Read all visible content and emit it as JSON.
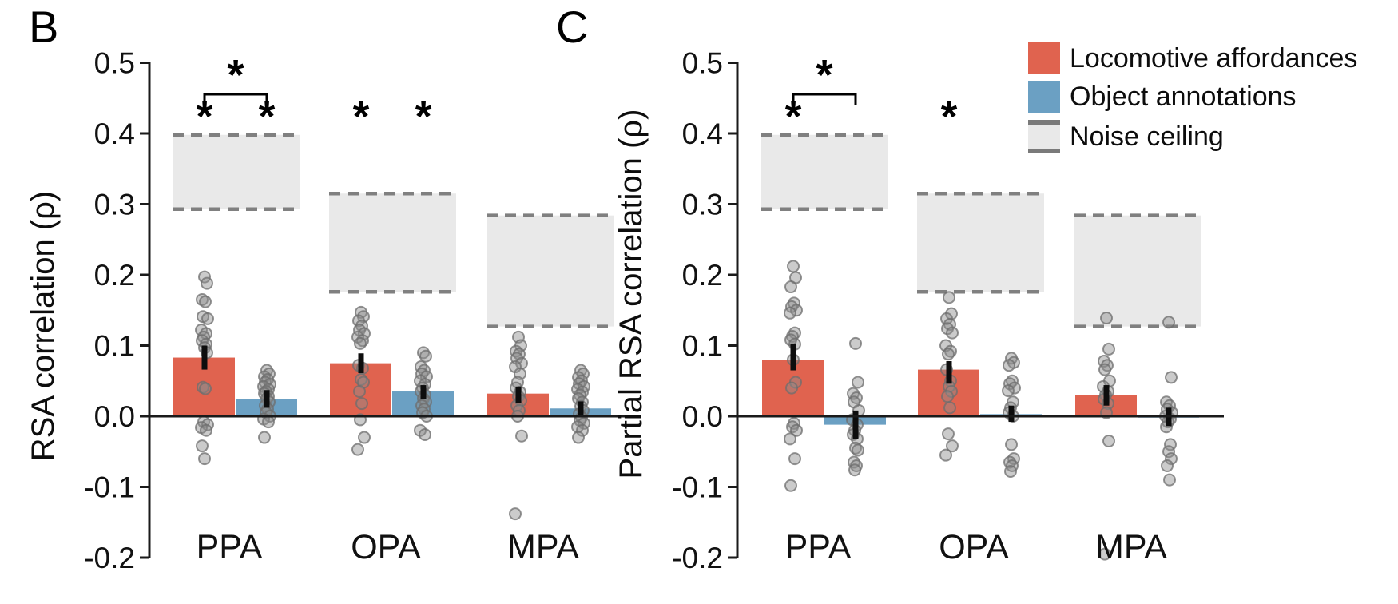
{
  "figure": {
    "colors": {
      "locomotive": "#E0634F",
      "object": "#6BA0C3",
      "noise_fill": "#E9E9E9",
      "noise_edge": "#808080",
      "axis": "#1A1A1A",
      "error_bar": "#0D0D0D",
      "point_fill": "#8C8C8C",
      "point_edge": "#6E6E6E",
      "text": "#111111"
    },
    "legend": {
      "items": [
        {
          "label": "Locomotive affordances",
          "swatch": "locomotive"
        },
        {
          "label": "Object annotations",
          "swatch": "object"
        },
        {
          "label": "Noise ceiling",
          "swatch": "noise"
        }
      ]
    }
  },
  "chart_data": [
    {
      "type": "bar",
      "panel_letter": "B",
      "ylabel": "RSA correlation (ρ)",
      "categories": [
        "PPA",
        "OPA",
        "MPA"
      ],
      "ylim": [
        -0.2,
        0.5
      ],
      "y_ticks": [
        0.5,
        0.4,
        0.3,
        0.2,
        0.1,
        0.0,
        -0.1,
        -0.2
      ],
      "grid": false,
      "legend_position": "top-right",
      "series": [
        {
          "name": "Locomotive affordances",
          "values": [
            0.083,
            0.075,
            0.032
          ],
          "ci_low": [
            0.066,
            0.061,
            0.018
          ],
          "ci_high": [
            0.1,
            0.089,
            0.042
          ],
          "points": [
            [
              0.197,
              0.188,
              0.165,
              0.162,
              0.141,
              0.138,
              0.122,
              0.117,
              0.112,
              0.107,
              0.102,
              0.097,
              0.09,
              0.041,
              0.039,
              -0.008,
              -0.012,
              -0.016,
              -0.02,
              -0.042,
              -0.06
            ],
            [
              0.147,
              0.141,
              0.135,
              0.128,
              0.122,
              0.117,
              0.112,
              0.107,
              0.103,
              0.072,
              0.068,
              0.052,
              0.048,
              0.035,
              0.018,
              -0.005,
              -0.03,
              -0.047
            ],
            [
              0.112,
              0.1,
              0.092,
              0.088,
              0.082,
              0.075,
              0.07,
              0.06,
              0.048,
              0.04,
              0.034,
              0.028,
              0.022,
              0.015,
              0.008,
              0.0,
              -0.028,
              -0.138
            ]
          ]
        },
        {
          "name": "Object annotations",
          "values": [
            0.024,
            0.035,
            0.011
          ],
          "ci_low": [
            0.012,
            0.024,
            0.0
          ],
          "ci_high": [
            0.037,
            0.044,
            0.021
          ],
          "points": [
            [
              0.065,
              0.06,
              0.056,
              0.052,
              0.048,
              0.045,
              0.042,
              0.038,
              0.035,
              0.032,
              0.028,
              0.025,
              0.02,
              0.015,
              0.01,
              0.005,
              0.0,
              -0.004,
              -0.008,
              -0.03
            ],
            [
              0.09,
              0.085,
              0.07,
              0.065,
              0.06,
              0.056,
              0.05,
              0.045,
              0.04,
              0.035,
              0.03,
              0.025,
              0.02,
              0.015,
              0.01,
              0.005,
              0.0,
              -0.02,
              -0.026
            ],
            [
              0.065,
              0.06,
              0.055,
              0.05,
              0.046,
              0.042,
              0.038,
              0.034,
              0.03,
              0.025,
              0.02,
              0.014,
              0.008,
              0.003,
              -0.002,
              -0.006,
              -0.01,
              -0.015,
              -0.02,
              -0.03
            ]
          ]
        }
      ],
      "noise_ceiling": [
        [
          0.293,
          0.398
        ],
        [
          0.176,
          0.315
        ],
        [
          0.127,
          0.284
        ]
      ],
      "significance": {
        "bar_stars": [
          {
            "category": "PPA",
            "series": 0,
            "label": "*"
          },
          {
            "category": "PPA",
            "series": 1,
            "label": "*"
          },
          {
            "category": "OPA",
            "series": 0,
            "label": "*"
          },
          {
            "category": "OPA",
            "series": 1,
            "label": "*"
          }
        ],
        "brackets": [
          {
            "category": "PPA",
            "between": [
              0,
              1
            ],
            "label": "*"
          }
        ]
      }
    },
    {
      "type": "bar",
      "panel_letter": "C",
      "ylabel": "Partial RSA correlation (ρ)",
      "categories": [
        "PPA",
        "OPA",
        "MPA"
      ],
      "ylim": [
        -0.2,
        0.5
      ],
      "y_ticks": [
        0.5,
        0.4,
        0.3,
        0.2,
        0.1,
        0.0,
        -0.1,
        -0.2
      ],
      "grid": false,
      "series": [
        {
          "name": "Locomotive affordances",
          "values": [
            0.08,
            0.066,
            0.03
          ],
          "ci_low": [
            0.065,
            0.046,
            0.015
          ],
          "ci_high": [
            0.103,
            0.078,
            0.044
          ],
          "points": [
            [
              0.212,
              0.196,
              0.183,
              0.16,
              0.155,
              0.15,
              0.146,
              0.118,
              0.113,
              0.108,
              0.102,
              0.08,
              0.048,
              0.04,
              -0.01,
              -0.015,
              -0.02,
              -0.032,
              -0.06,
              -0.098
            ],
            [
              0.168,
              0.145,
              0.138,
              0.13,
              0.124,
              0.118,
              0.1,
              0.092,
              0.088,
              0.066,
              0.05,
              0.042,
              0.035,
              0.028,
              0.012,
              -0.025,
              -0.042,
              -0.055
            ],
            [
              0.139,
              0.095,
              0.078,
              0.072,
              0.066,
              0.05,
              0.042,
              0.035,
              0.03,
              0.024,
              0.018,
              0.005,
              -0.035,
              -0.195
            ]
          ]
        },
        {
          "name": "Object annotations",
          "values": [
            -0.012,
            0.003,
            -0.002
          ],
          "ci_low": [
            -0.032,
            -0.008,
            -0.014
          ],
          "ci_high": [
            0.008,
            0.015,
            0.012
          ],
          "points": [
            [
              0.103,
              0.048,
              0.032,
              0.026,
              0.02,
              0.008,
              -0.005,
              -0.012,
              -0.02,
              -0.026,
              -0.032,
              -0.045,
              -0.048,
              -0.065,
              -0.07,
              -0.076
            ],
            [
              0.082,
              0.076,
              0.072,
              0.05,
              0.046,
              0.04,
              0.036,
              0.02,
              0.012,
              0.005,
              0.0,
              -0.04,
              -0.06,
              -0.065,
              -0.07,
              -0.078
            ],
            [
              0.133,
              0.055,
              0.02,
              0.015,
              0.01,
              0.005,
              0.0,
              -0.004,
              -0.008,
              -0.015,
              -0.04,
              -0.05,
              -0.06,
              -0.07,
              -0.09
            ]
          ]
        }
      ],
      "noise_ceiling": [
        [
          0.293,
          0.398
        ],
        [
          0.176,
          0.315
        ],
        [
          0.127,
          0.284
        ]
      ],
      "significance": {
        "bar_stars": [
          {
            "category": "PPA",
            "series": 0,
            "label": "*"
          },
          {
            "category": "OPA",
            "series": 0,
            "label": "*"
          }
        ],
        "brackets": [
          {
            "category": "PPA",
            "between": [
              0,
              1
            ],
            "label": "*"
          }
        ]
      }
    }
  ]
}
